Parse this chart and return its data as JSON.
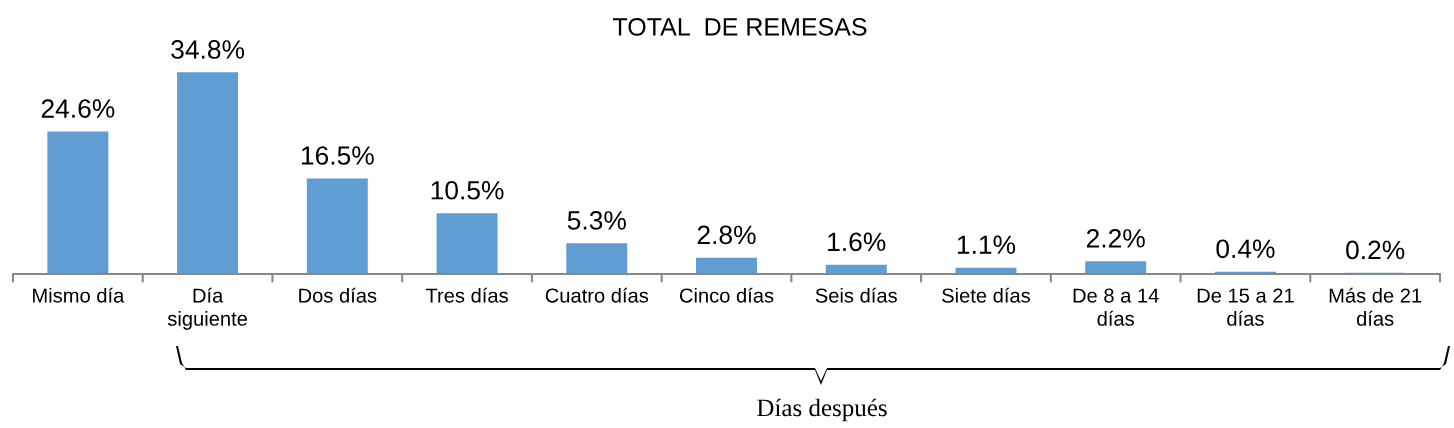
{
  "chart_data": {
    "type": "bar",
    "title": "TOTAL  DE REMESAS",
    "categories": [
      "Mismo día",
      "Día\nsiguiente",
      "Dos días",
      "Tres días",
      "Cuatro días",
      "Cinco días",
      "Seis días",
      "Siete días",
      "De 8 a 14\ndías",
      "De 15 a 21\ndías",
      "Más de 21\ndías"
    ],
    "values": [
      24.6,
      34.8,
      16.5,
      10.5,
      5.3,
      2.8,
      1.6,
      1.1,
      2.2,
      0.4,
      0.2
    ],
    "value_labels": [
      "24.6%",
      "34.8%",
      "16.5%",
      "10.5%",
      "5.3%",
      "2.8%",
      "1.6%",
      "1.1%",
      "2.2%",
      "0.4%",
      "0.2%"
    ],
    "color": "#5f9dd2",
    "annotations": [
      "Días después"
    ],
    "grid": false,
    "legend": false
  }
}
